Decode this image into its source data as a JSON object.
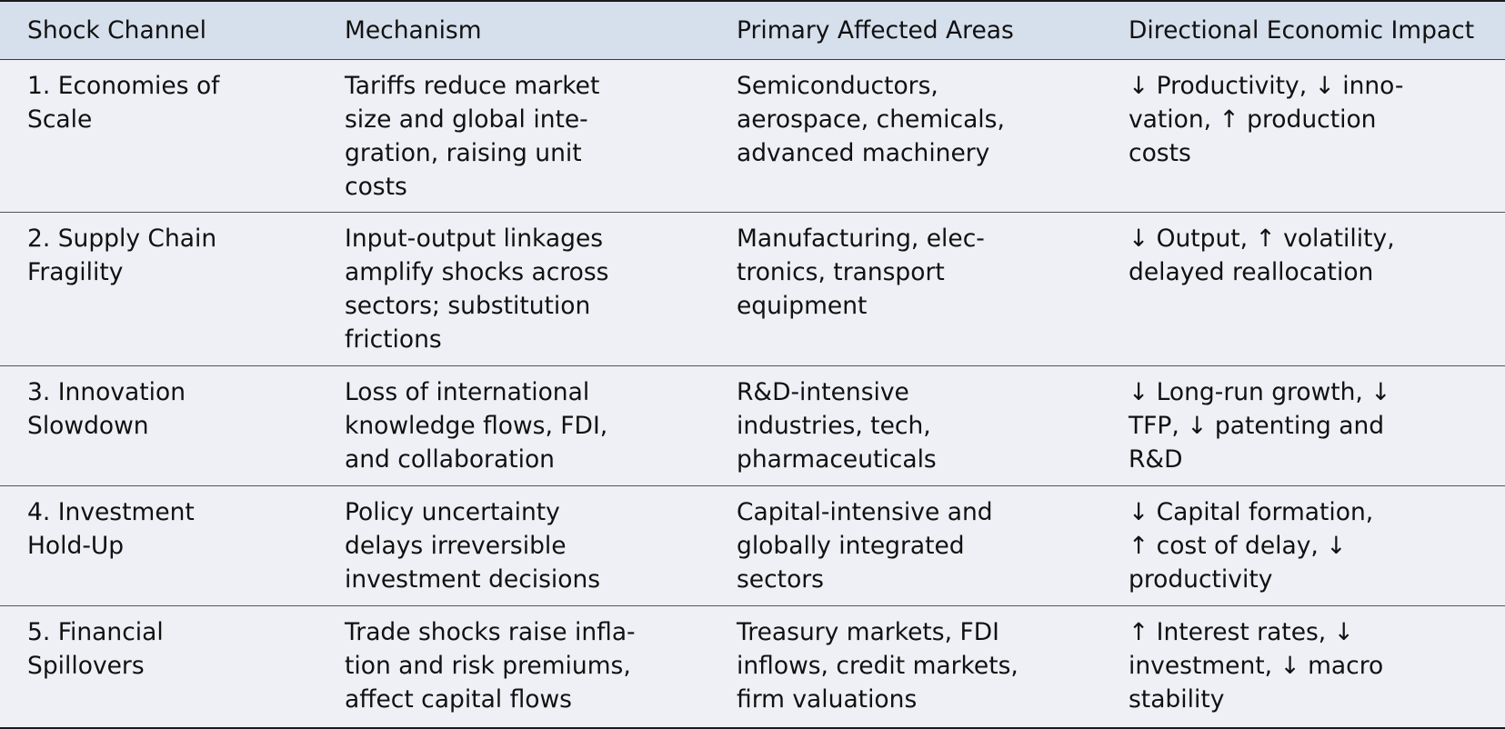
{
  "table": {
    "headers": [
      "Shock Channel",
      "Mechanism",
      "Primary Affected Areas",
      "Directional Economic Impact"
    ],
    "rows": [
      [
        "1. Economies of\nScale",
        "Tariffs reduce market\nsize and global inte-\ngration, raising unit\ncosts",
        "Semiconductors,\naerospace, chemicals,\nadvanced machinery",
        "↓ Productivity, ↓ inno-\nvation, ↑ production\ncosts"
      ],
      [
        "2. Supply Chain\nFragility",
        "Input-output linkages\namplify shocks across\nsectors; substitution\nfrictions",
        "Manufacturing, elec-\ntronics, transport\nequipment",
        "↓ Output, ↑ volatility,\ndelayed reallocation"
      ],
      [
        "3. Innovation\nSlowdown",
        "Loss of international\nknowledge flows, FDI,\nand collaboration",
        "R&D-intensive\nindustries, tech,\npharmaceuticals",
        "↓ Long-run growth, ↓\nTFP, ↓ patenting and\nR&D"
      ],
      [
        "4. Investment\nHold-Up",
        "Policy uncertainty\ndelays irreversible\ninvestment decisions",
        "Capital-intensive and\nglobally integrated\nsectors",
        "↓ Capital formation,\n↑ cost of delay, ↓\nproductivity"
      ],
      [
        "5. Financial\nSpillovers",
        "Trade shocks raise infla-\ntion and risk premiums,\naffect capital flows",
        "Treasury markets, FDI\ninflows, credit markets,\nfirm valuations",
        "↑ Interest rates, ↓\ninvestment, ↓ macro\nstability"
      ]
    ]
  },
  "colors": {
    "header_bg": "#d6dfec",
    "body_bg": "#eef0f5",
    "rule": "#1a1a1a"
  }
}
